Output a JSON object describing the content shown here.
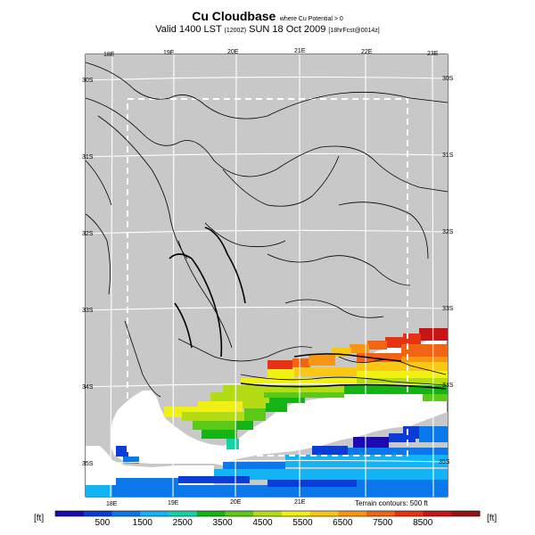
{
  "title": {
    "main": "Cu Cloudbase",
    "note": "where Cu Potential > 0"
  },
  "subtitle": {
    "valid": "Valid 1400 LST",
    "zulu": "(1200Z)",
    "date": "SUN 18 Oct 2009",
    "fcst": "[18hrFcst@0014z]"
  },
  "top_lon_labels": [
    "18E",
    "19E",
    "20E",
    "21E",
    "22E",
    "23E"
  ],
  "bottom_lon_labels": [
    "18E",
    "19E",
    "20E",
    "21E"
  ],
  "left_lat_labels": [
    "30S",
    "31S",
    "32S",
    "33S",
    "34S",
    "35S"
  ],
  "right_lat_labels": [
    "30S",
    "31S",
    "32S",
    "33S",
    "34S",
    "35S"
  ],
  "terrain_note": "Terrain contours: 500 ft",
  "colorbar": {
    "unit_left": "[ft]",
    "unit_right": "[ft]",
    "tick_labels": [
      "500",
      "1500",
      "2500",
      "3500",
      "4500",
      "5500",
      "6500",
      "7500",
      "8500"
    ],
    "colors": [
      "#1a0ab0",
      "#0a3cd6",
      "#0a78ea",
      "#12b4f4",
      "#14d2a8",
      "#14b414",
      "#5cc818",
      "#b4dc14",
      "#f0f014",
      "#f8c814",
      "#f89614",
      "#f06414",
      "#e83214",
      "#c81414",
      "#961414"
    ]
  },
  "colors": {
    "land_grey": "#c8c8c8",
    "ocean": "#ffffff",
    "grid": "#ffffff"
  }
}
